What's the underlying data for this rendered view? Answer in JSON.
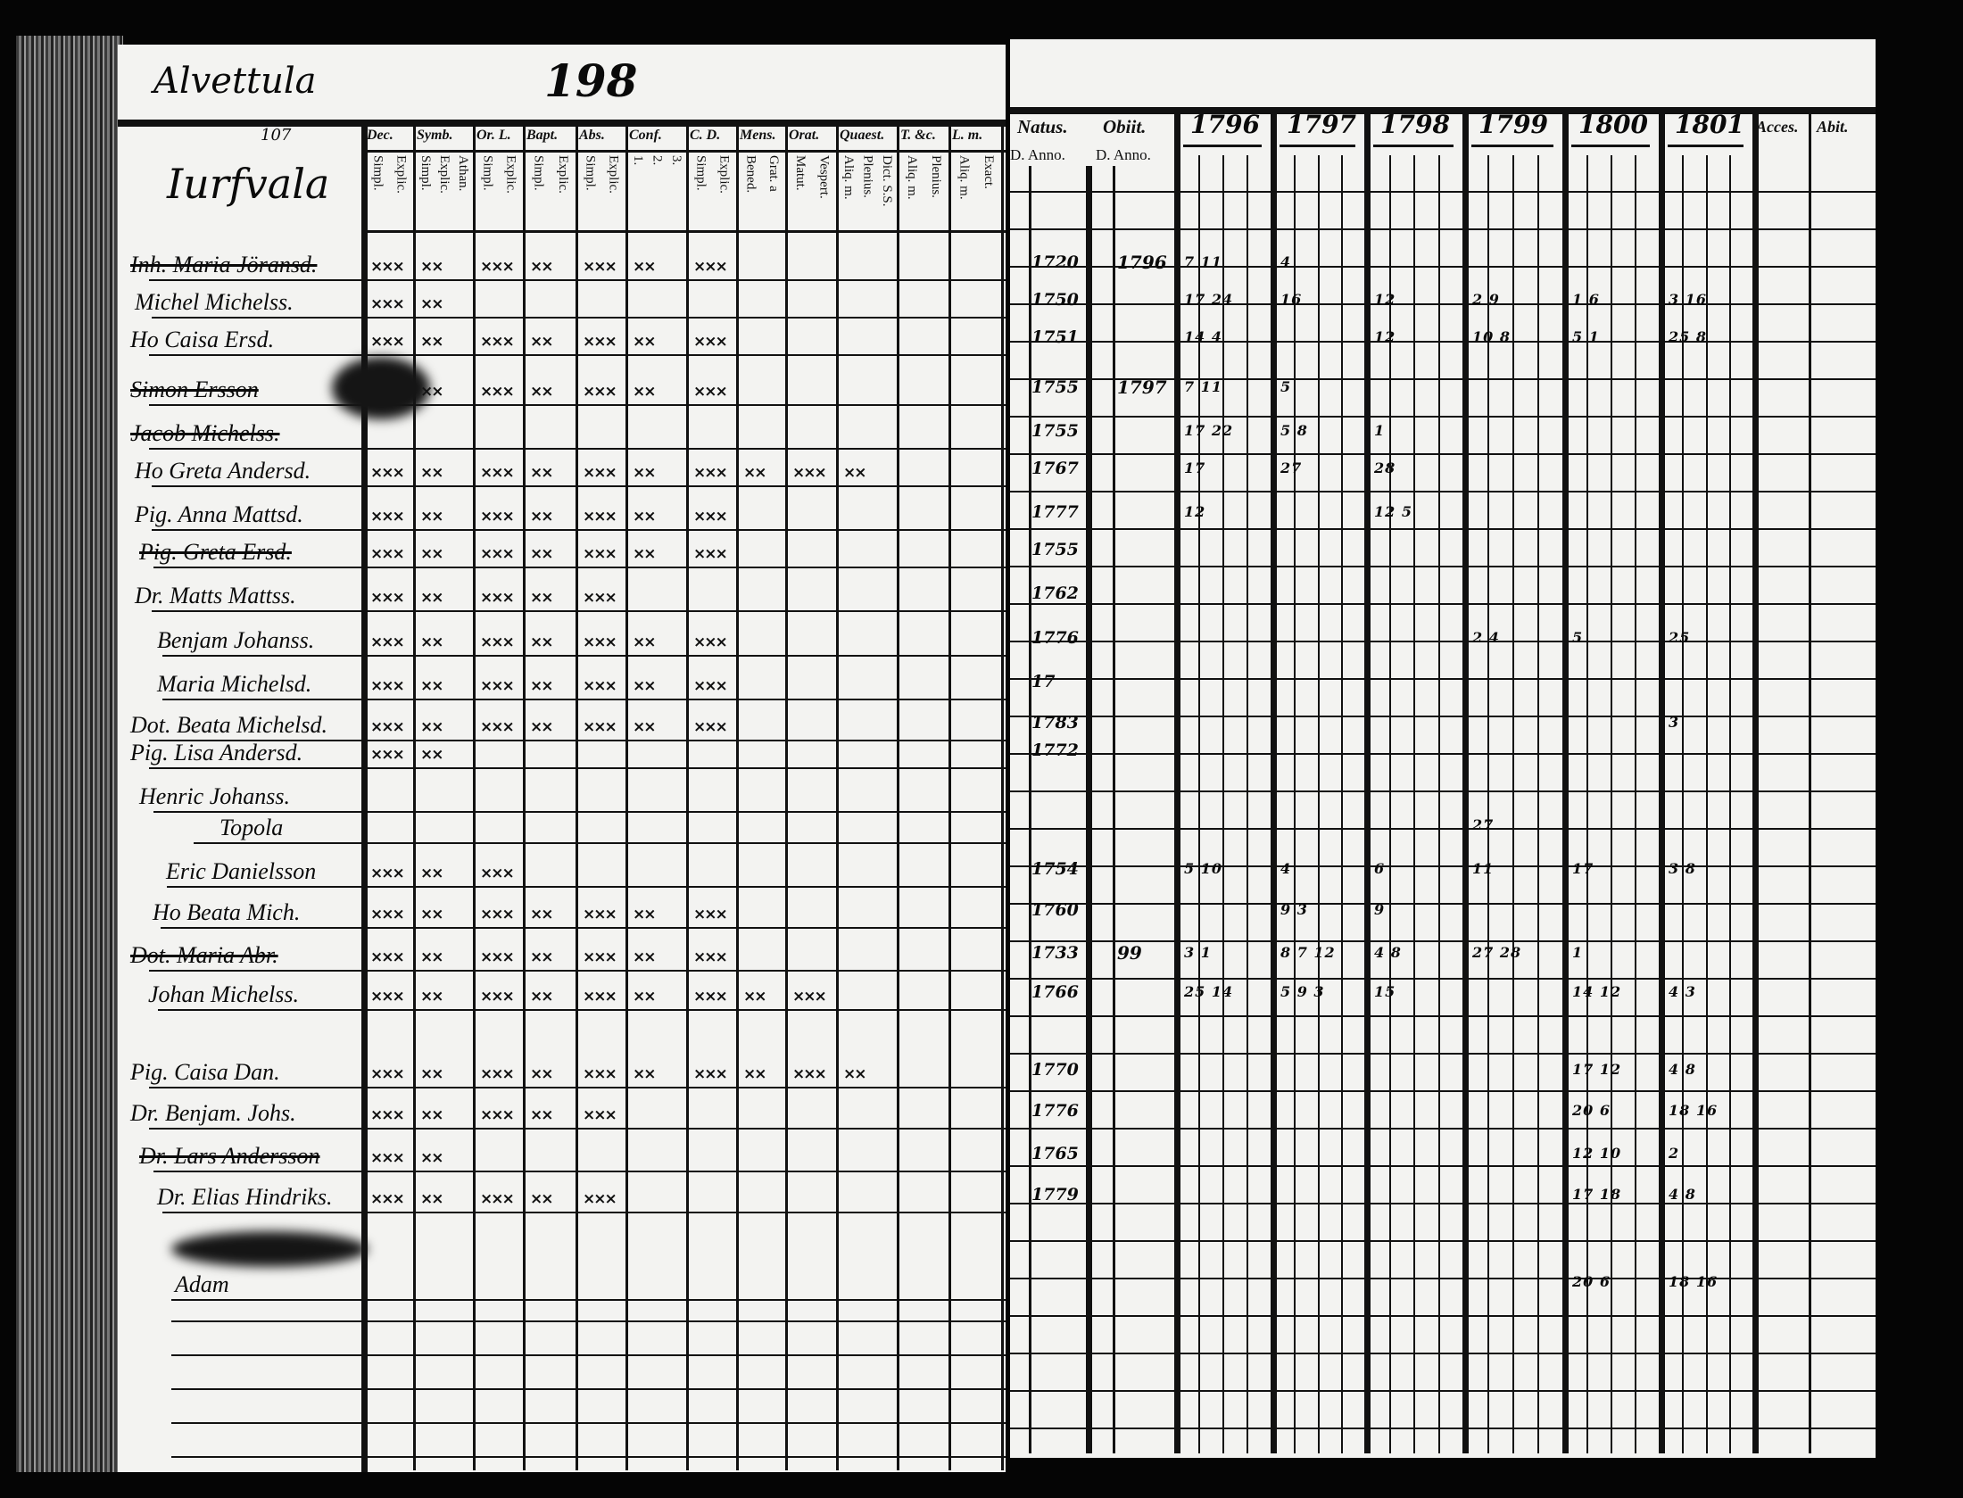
{
  "left_page": {
    "village": "Alvettula",
    "page_number": "198",
    "corner_note": "107",
    "farm": "Iurfvala",
    "column_headers": [
      {
        "label": "Dec.",
        "sub": [
          "Explic.",
          "Simpl."
        ]
      },
      {
        "label": "Symb.",
        "sub": [
          "Athan.",
          "Explic.",
          "Simpl."
        ]
      },
      {
        "label": "Or. L.",
        "sub": [
          "Explic.",
          "Simpl."
        ]
      },
      {
        "label": "Bapt.",
        "sub": [
          "Explic.",
          "Simpl."
        ]
      },
      {
        "label": "Abs.",
        "sub": [
          "Explic.",
          "Simpl."
        ]
      },
      {
        "label": "Conf.",
        "sub": [
          "3.",
          "2.",
          "1."
        ]
      },
      {
        "label": "C. D.",
        "sub": [
          "Explic.",
          "Simpl."
        ]
      },
      {
        "label": "Mens.",
        "sub": [
          "Grat. a",
          "Bened."
        ]
      },
      {
        "label": "Orat.",
        "sub": [
          "Vespert.",
          "Matut."
        ]
      },
      {
        "label": "Quaest.",
        "sub": [
          "Dict. S.S.",
          "Plenius.",
          "Aliq. m."
        ]
      },
      {
        "label": "T. &c.",
        "sub": [
          "Plenius.",
          "Aliq. m."
        ]
      },
      {
        "label": "L. m.",
        "sub": [
          "Exact.",
          "Aliq. m."
        ]
      }
    ],
    "persons": [
      {
        "name": "Inh. Maria Jöransd.",
        "crossed": true,
        "filled_columns": 7
      },
      {
        "name": "Michel Michelss.",
        "crossed": false,
        "filled_columns": 2
      },
      {
        "name": "Ho Caisa Ersd.",
        "crossed": false,
        "filled_columns": 7
      },
      {
        "name": "Simon Ersson",
        "crossed": true,
        "filled_columns": 7
      },
      {
        "name": "Jacob Michelss.",
        "crossed": true,
        "filled_columns": 0
      },
      {
        "name": "Ho Greta Andersd.",
        "crossed": false,
        "filled_columns": 10
      },
      {
        "name": "Pig. Anna Mattsd.",
        "crossed": false,
        "filled_columns": 7
      },
      {
        "name": "Pig. Greta Ersd.",
        "crossed": true,
        "filled_columns": 7
      },
      {
        "name": "Dr. Matts Mattss.",
        "crossed": false,
        "filled_columns": 5
      },
      {
        "name": "Benjam Johanss.",
        "crossed": false,
        "filled_columns": 7
      },
      {
        "name": "Maria Michelsd.",
        "crossed": false,
        "filled_columns": 7
      },
      {
        "name": "Dot. Beata Michelsd.",
        "crossed": false,
        "filled_columns": 7
      },
      {
        "name": "Pig. Lisa Andersd.",
        "crossed": false,
        "filled_columns": 2
      },
      {
        "name": "Henric Johanss.",
        "crossed": false,
        "filled_columns": 0
      },
      {
        "name": "Topola",
        "crossed": false,
        "filled_columns": 0
      },
      {
        "name": "Eric Danielsson",
        "crossed": false,
        "filled_columns": 3
      },
      {
        "name": "Ho Beata Mich.",
        "crossed": false,
        "filled_columns": 7
      },
      {
        "name": "Dot. Maria Abr.",
        "crossed": true,
        "filled_columns": 7
      },
      {
        "name": "Johan Michelss.",
        "crossed": false,
        "filled_columns": 9
      },
      {
        "name": "Pig. Caisa Dan.",
        "crossed": false,
        "filled_columns": 10
      },
      {
        "name": "Dr. Benjam. Johs.",
        "crossed": false,
        "filled_columns": 5
      },
      {
        "name": "Dr. Lars Andersson",
        "crossed": true,
        "filled_columns": 2
      },
      {
        "name": "Dr. Elias Hindriks.",
        "crossed": false,
        "filled_columns": 5
      },
      {
        "name": "Adam",
        "crossed": false,
        "filled_columns": 0
      }
    ]
  },
  "right_page": {
    "column_headers": {
      "natus": "Natus.",
      "natus_sub": "D. Anno.",
      "obiit": "Obiit.",
      "obiit_sub": "D. Anno.",
      "years": [
        "1796",
        "1797",
        "1798",
        "1799",
        "1800",
        "1801"
      ],
      "accessit": "Acces.",
      "abiit": "Abit."
    },
    "rows": [
      {
        "natus": "1720",
        "obiit": "1796",
        "years": [
          "7 11",
          "4",
          "",
          "",
          "",
          ""
        ]
      },
      {
        "natus": "1750",
        "obiit": "",
        "years": [
          "17 24",
          "16",
          "12",
          "2 9",
          "1 6",
          "3 16"
        ]
      },
      {
        "natus": "1751",
        "obiit": "",
        "years": [
          "14 4",
          "",
          "12",
          "10 8",
          "5 1",
          "25 8"
        ]
      },
      {
        "natus": "1755",
        "obiit": "1797",
        "years": [
          "7 11",
          "5",
          "",
          "",
          "",
          ""
        ]
      },
      {
        "natus": "1755",
        "obiit": "",
        "years": [
          "17 22",
          "5 8",
          "1",
          "",
          "",
          ""
        ]
      },
      {
        "natus": "1767",
        "obiit": "",
        "years": [
          "17",
          "27",
          "28",
          "",
          "",
          ""
        ]
      },
      {
        "natus": "1777",
        "obiit": "",
        "years": [
          "12",
          "",
          "12 5",
          "",
          "",
          ""
        ]
      },
      {
        "natus": "1755",
        "obiit": "",
        "years": [
          "",
          "",
          "",
          "",
          "",
          ""
        ]
      },
      {
        "natus": "1762",
        "obiit": "",
        "years": [
          "",
          "",
          "",
          "",
          "",
          ""
        ]
      },
      {
        "natus": "1776",
        "obiit": "",
        "years": [
          "",
          "",
          "",
          "2 4",
          "5",
          "25"
        ]
      },
      {
        "natus": "17",
        "obiit": "",
        "years": [
          "",
          "",
          "",
          "",
          "",
          ""
        ]
      },
      {
        "natus": "1783",
        "obiit": "",
        "years": [
          "",
          "",
          "",
          "",
          "",
          "3"
        ]
      },
      {
        "natus": "1772",
        "obiit": "",
        "years": [
          "",
          "",
          "",
          "",
          "",
          ""
        ]
      },
      {
        "natus": "",
        "obiit": "",
        "years": [
          "",
          "",
          "",
          "",
          "",
          ""
        ]
      },
      {
        "natus": "",
        "obiit": "",
        "years": [
          "",
          "",
          "",
          "27",
          "",
          ""
        ]
      },
      {
        "natus": "1754",
        "obiit": "",
        "years": [
          "5 10",
          "4",
          "6",
          "11",
          "17",
          "3 8"
        ]
      },
      {
        "natus": "1760",
        "obiit": "",
        "years": [
          "",
          "9 3",
          "9",
          "",
          "",
          ""
        ]
      },
      {
        "natus": "1733",
        "obiit": "99",
        "years": [
          "3 1",
          "8 7 12",
          "4 8",
          "27 28",
          "1",
          ""
        ]
      },
      {
        "natus": "1766",
        "obiit": "",
        "years": [
          "25 14",
          "5 9 3",
          "15",
          "",
          "14 12",
          "4 3"
        ]
      },
      {
        "natus": "1770",
        "obiit": "",
        "years": [
          "",
          "",
          "",
          "",
          "17 12",
          "4 8"
        ]
      },
      {
        "natus": "1776",
        "obiit": "",
        "years": [
          "",
          "",
          "",
          "",
          "20 6",
          "18 16"
        ]
      },
      {
        "natus": "1765",
        "obiit": "",
        "years": [
          "",
          "",
          "",
          "",
          "12 10",
          "2"
        ]
      },
      {
        "natus": "1779",
        "obiit": "",
        "years": [
          "",
          "",
          "",
          "",
          "17 18",
          "4 8"
        ]
      },
      {
        "natus": "",
        "obiit": "",
        "years": [
          "",
          "",
          "",
          "",
          "20 6",
          "18 16"
        ]
      }
    ]
  }
}
